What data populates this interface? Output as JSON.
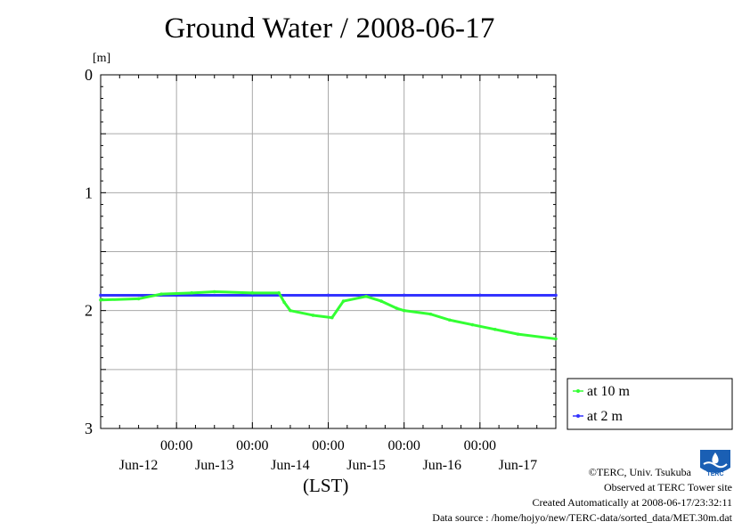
{
  "chart_data": {
    "type": "line",
    "title": "Ground Water / 2008-06-17",
    "ylabel": "[m]",
    "xlabel": "(LST)",
    "y_inverted": true,
    "ylim": [
      0,
      3
    ],
    "yticks": [
      "0",
      "1",
      "2",
      "3"
    ],
    "xlim_days": [
      0,
      6
    ],
    "x_time_labels": [
      "00:00",
      "00:00",
      "00:00",
      "00:00",
      "00:00"
    ],
    "x_date_labels": [
      "Jun-12",
      "Jun-13",
      "Jun-14",
      "Jun-15",
      "Jun-16",
      "Jun-17"
    ],
    "grid": true,
    "legend_placement": "right",
    "series": [
      {
        "name": "at 10 m",
        "color": "#33ff33",
        "x": [
          0.0,
          0.5,
          0.8,
          1.2,
          1.5,
          2.0,
          2.35,
          2.42,
          2.5,
          2.8,
          3.05,
          3.2,
          3.5,
          3.7,
          3.9,
          4.0,
          4.35,
          4.6,
          4.9,
          5.2,
          5.5,
          6.0
        ],
        "y": [
          1.91,
          1.9,
          1.86,
          1.85,
          1.84,
          1.85,
          1.85,
          1.93,
          2.0,
          2.04,
          2.06,
          1.92,
          1.88,
          1.92,
          1.98,
          2.0,
          2.03,
          2.08,
          2.12,
          2.16,
          2.2,
          2.24
        ]
      },
      {
        "name": "at 2 m",
        "color": "#3333ff",
        "x": [
          0.0,
          1.0,
          2.0,
          3.0,
          4.0,
          5.0,
          6.0
        ],
        "y": [
          1.87,
          1.87,
          1.87,
          1.87,
          1.87,
          1.87,
          1.87
        ]
      }
    ]
  },
  "footer": {
    "copyright": "©TERC, Univ. Tsukuba",
    "site": "Observed at TERC Tower site",
    "created": "Created Automatically at 2008-06-17/23:32:11",
    "source": "Data source : /home/hojyo/new/TERC-data/sorted_data/MET.30m.dat"
  },
  "logo": {
    "name": "terc-logo-icon",
    "text": "TERC",
    "color": "#1a5fb4"
  }
}
